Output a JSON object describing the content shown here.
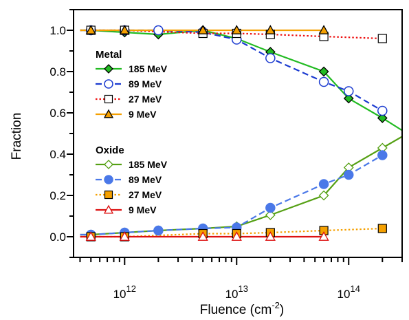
{
  "chart_data": {
    "type": "line",
    "title": "",
    "xlabel": "Fluence (cm",
    "xlabel_sup": "-2",
    "xlabel_end": ")",
    "ylabel": "Fraction",
    "x_scale": "log",
    "xlim": [
      350000000000.0,
      300000000000000.0
    ],
    "ylim": [
      -0.1,
      1.1
    ],
    "x_ticks": [
      {
        "value": 1000000000000.0,
        "base": "10",
        "exp": "12"
      },
      {
        "value": 10000000000000.0,
        "base": "10",
        "exp": "13"
      },
      {
        "value": 100000000000000.0,
        "base": "10",
        "exp": "14"
      }
    ],
    "y_ticks": [
      {
        "value": 0.0,
        "label": "0.0"
      },
      {
        "value": 0.2,
        "label": "0.2"
      },
      {
        "value": 0.4,
        "label": "0.4"
      },
      {
        "value": 0.6,
        "label": "0.6"
      },
      {
        "value": 0.8,
        "label": "0.8"
      },
      {
        "value": 1.0,
        "label": "1.0"
      }
    ],
    "grid": false,
    "legend_position": "left",
    "legend_groups": [
      {
        "title": "Metal",
        "series": [
          0,
          1,
          2,
          3
        ]
      },
      {
        "title": "Oxide",
        "series": [
          4,
          5,
          6,
          7
        ]
      }
    ],
    "series": [
      {
        "name": "185 MeV",
        "color": "#22bb22",
        "dash": "solid",
        "marker": "diamond",
        "filled": true,
        "marker_fill": "#22bb22",
        "x": [
          400000000000.0,
          500000000000.0,
          1000000000000.0,
          2000000000000.0,
          5000000000000.0,
          10000000000000.0,
          20000000000000.0,
          60000000000000.0,
          100000000000000.0,
          200000000000000.0,
          300000000000000.0
        ],
        "y": [
          1.0,
          1.0,
          0.99,
          0.98,
          1.0,
          0.96,
          0.895,
          0.8,
          0.67,
          0.575,
          0.515
        ],
        "marker_x": [
          500000000000.0,
          1000000000000.0,
          2000000000000.0,
          5000000000000.0,
          10000000000000.0,
          20000000000000.0,
          60000000000000.0,
          100000000000000.0,
          200000000000000.0
        ]
      },
      {
        "name": "89 MeV",
        "color": "#1a3ad0",
        "dash": "dashed",
        "marker": "circle",
        "filled": false,
        "marker_fill": "#ffffff",
        "x": [
          400000000000.0,
          500000000000.0,
          1000000000000.0,
          2000000000000.0,
          5000000000000.0,
          10000000000000.0,
          20000000000000.0,
          60000000000000.0,
          100000000000000.0,
          200000000000000.0
        ],
        "y": [
          1.0,
          1.0,
          1.0,
          1.0,
          0.99,
          0.955,
          0.865,
          0.75,
          0.705,
          0.61
        ],
        "marker_x": [
          500000000000.0,
          1000000000000.0,
          2000000000000.0,
          5000000000000.0,
          10000000000000.0,
          20000000000000.0,
          60000000000000.0,
          100000000000000.0,
          200000000000000.0
        ]
      },
      {
        "name": "27 MeV",
        "color": "#ee1111",
        "dash": "dotted",
        "marker": "square",
        "filled": false,
        "marker_fill": "#ffffff",
        "x": [
          400000000000.0,
          500000000000.0,
          1000000000000.0,
          5000000000000.0,
          10000000000000.0,
          20000000000000.0,
          60000000000000.0,
          200000000000000.0
        ],
        "y": [
          1.0,
          1.0,
          1.0,
          0.985,
          0.985,
          0.98,
          0.97,
          0.96
        ],
        "marker_x": [
          500000000000.0,
          1000000000000.0,
          5000000000000.0,
          10000000000000.0,
          20000000000000.0,
          60000000000000.0,
          200000000000000.0
        ]
      },
      {
        "name": "9 MeV",
        "color": "#f5a000",
        "dash": "solid",
        "marker": "triangle",
        "filled": true,
        "marker_fill": "#f5a000",
        "x": [
          400000000000.0,
          500000000000.0,
          1000000000000.0,
          5000000000000.0,
          10000000000000.0,
          20000000000000.0,
          60000000000000.0
        ],
        "y": [
          1.0,
          1.0,
          1.0,
          1.0,
          1.0,
          1.0,
          1.0
        ],
        "marker_x": [
          500000000000.0,
          1000000000000.0,
          5000000000000.0,
          10000000000000.0,
          20000000000000.0,
          60000000000000.0
        ]
      },
      {
        "name": "185 MeV",
        "color": "#55a014",
        "dash": "solid",
        "marker": "diamond",
        "filled": false,
        "marker_fill": "#ffffff",
        "x": [
          400000000000.0,
          500000000000.0,
          1000000000000.0,
          2000000000000.0,
          5000000000000.0,
          10000000000000.0,
          20000000000000.0,
          60000000000000.0,
          100000000000000.0,
          200000000000000.0,
          300000000000000.0
        ],
        "y": [
          0.01,
          0.01,
          0.02,
          0.03,
          0.04,
          0.05,
          0.105,
          0.2,
          0.335,
          0.43,
          0.485
        ],
        "marker_x": [
          500000000000.0,
          1000000000000.0,
          2000000000000.0,
          5000000000000.0,
          10000000000000.0,
          20000000000000.0,
          60000000000000.0,
          100000000000000.0,
          200000000000000.0
        ]
      },
      {
        "name": "89 MeV",
        "color": "#4a78e8",
        "dash": "dashed",
        "marker": "circle",
        "filled": true,
        "marker_fill": "#4a78e8",
        "x": [
          400000000000.0,
          500000000000.0,
          1000000000000.0,
          2000000000000.0,
          5000000000000.0,
          10000000000000.0,
          20000000000000.0,
          60000000000000.0,
          100000000000000.0,
          200000000000000.0
        ],
        "y": [
          0.01,
          0.01,
          0.02,
          0.03,
          0.04,
          0.045,
          0.14,
          0.255,
          0.3,
          0.395
        ],
        "marker_x": [
          500000000000.0,
          1000000000000.0,
          2000000000000.0,
          5000000000000.0,
          10000000000000.0,
          20000000000000.0,
          60000000000000.0,
          100000000000000.0,
          200000000000000.0
        ]
      },
      {
        "name": "27 MeV",
        "color": "#f5a000",
        "dash": "dotted",
        "marker": "square",
        "filled": true,
        "marker_fill": "#f5a000",
        "x": [
          400000000000.0,
          500000000000.0,
          1000000000000.0,
          5000000000000.0,
          10000000000000.0,
          20000000000000.0,
          60000000000000.0,
          200000000000000.0
        ],
        "y": [
          0.0,
          0.0,
          0.0,
          0.015,
          0.015,
          0.02,
          0.03,
          0.04
        ],
        "marker_x": [
          500000000000.0,
          1000000000000.0,
          5000000000000.0,
          10000000000000.0,
          20000000000000.0,
          60000000000000.0,
          200000000000000.0
        ]
      },
      {
        "name": "9 MeV",
        "color": "#dd1111",
        "dash": "solid",
        "marker": "triangle",
        "filled": false,
        "marker_fill": "#ffffff",
        "x": [
          400000000000.0,
          500000000000.0,
          1000000000000.0,
          5000000000000.0,
          10000000000000.0,
          20000000000000.0,
          60000000000000.0
        ],
        "y": [
          0.0,
          0.0,
          0.0,
          0.0,
          0.0,
          0.0,
          0.0
        ],
        "marker_x": [
          500000000000.0,
          1000000000000.0,
          5000000000000.0,
          10000000000000.0,
          20000000000000.0,
          60000000000000.0
        ]
      }
    ]
  }
}
